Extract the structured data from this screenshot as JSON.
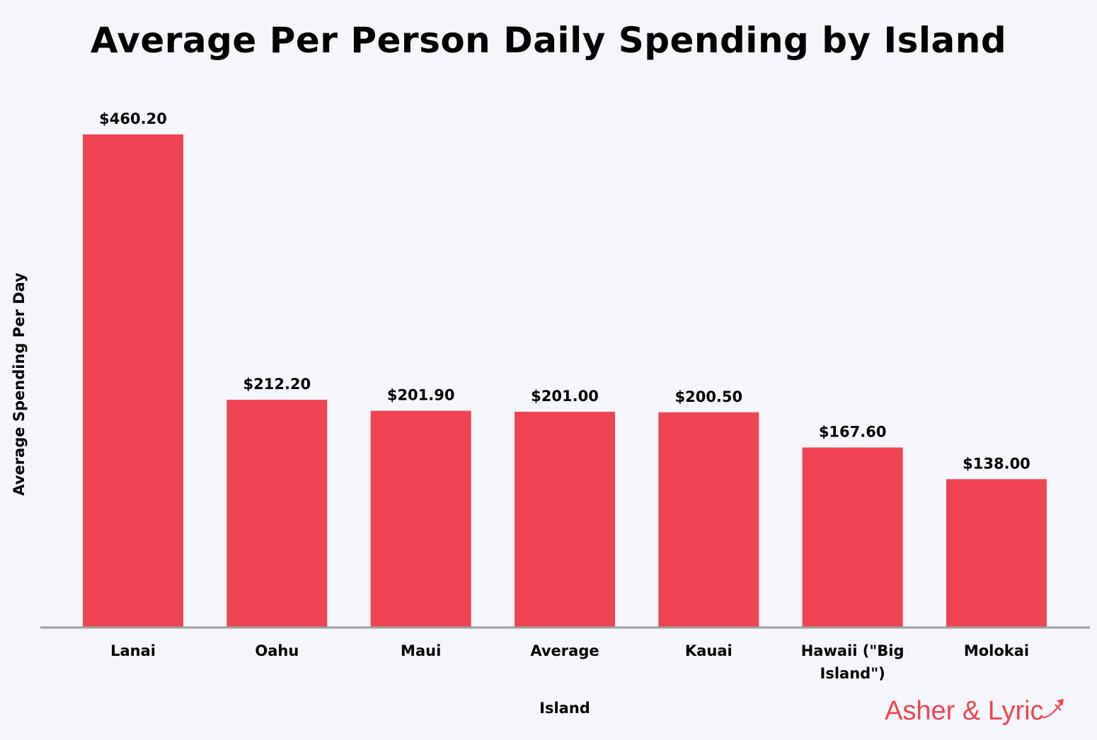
{
  "chart_data": {
    "type": "bar",
    "title": "Average Per Person Daily Spending by Island",
    "xlabel": "Island",
    "ylabel": "Average Spending Per Day",
    "categories": [
      "Lanai",
      "Oahu",
      "Maui",
      "Average",
      "Kauai",
      "Hawaii (\"Big Island\")",
      "Molokai"
    ],
    "category_lines": [
      [
        "Lanai"
      ],
      [
        "Oahu"
      ],
      [
        "Maui"
      ],
      [
        "Average"
      ],
      [
        "Kauai"
      ],
      [
        "Hawaii (\"Big",
        "Island\")"
      ],
      [
        "Molokai"
      ]
    ],
    "values": [
      460.2,
      212.2,
      201.9,
      201.0,
      200.5,
      167.6,
      138.0
    ],
    "value_labels": [
      "$460.20",
      "$212.20",
      "$201.90",
      "$201.00",
      "$200.50",
      "$167.60",
      "$138.00"
    ],
    "ylim": [
      0,
      460.2
    ],
    "grid": false,
    "legend": "none",
    "bar_color": "#f04352",
    "axis_color": "#9e9e9e"
  },
  "brand": {
    "text": "Asher & Lyric",
    "color": "#ef4452",
    "icon": "airplane-icon"
  }
}
